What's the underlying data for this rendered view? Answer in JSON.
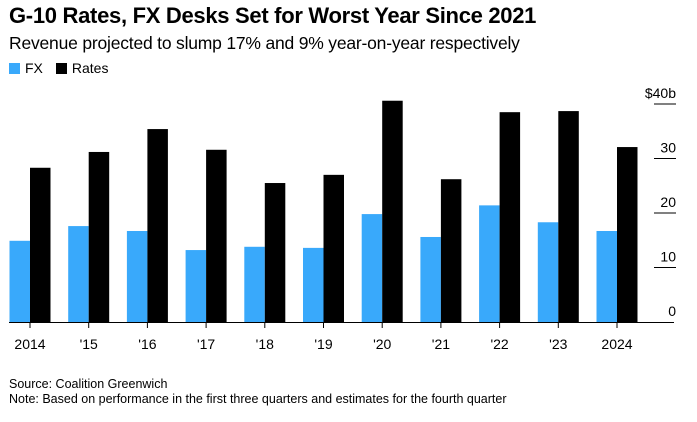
{
  "chart_data": {
    "type": "bar",
    "title": "G-10 Rates, FX Desks Set for Worst Year Since 2021",
    "subtitle": "Revenue projected to slump 17% and 9% year-on-year respectively",
    "categories": [
      "2014",
      "'15",
      "'16",
      "'17",
      "'18",
      "'19",
      "'20",
      "'21",
      "'22",
      "'23",
      "2024"
    ],
    "series": [
      {
        "name": "FX",
        "color": "#39a9fb",
        "values": [
          14.9,
          17.6,
          16.7,
          13.2,
          13.8,
          13.6,
          19.8,
          15.6,
          21.4,
          18.3,
          16.7
        ]
      },
      {
        "name": "Rates",
        "color": "#000000",
        "values": [
          28.3,
          31.2,
          35.4,
          31.6,
          25.5,
          27.0,
          40.6,
          26.2,
          38.5,
          38.7,
          32.1
        ]
      }
    ],
    "xlabel": "",
    "ylabel": "",
    "ylim": [
      0,
      40
    ],
    "yticks": [
      0,
      10,
      20,
      30,
      40
    ],
    "ytick_labels": [
      "0",
      "10",
      "20",
      "30",
      "$40b"
    ],
    "y_axis_position": "right",
    "grid": false,
    "legend_position": "top-left"
  },
  "footer": {
    "source": "Source: Coalition Greenwich",
    "note": "Note: Based on performance in the first three quarters and estimates for the fourth quarter"
  }
}
